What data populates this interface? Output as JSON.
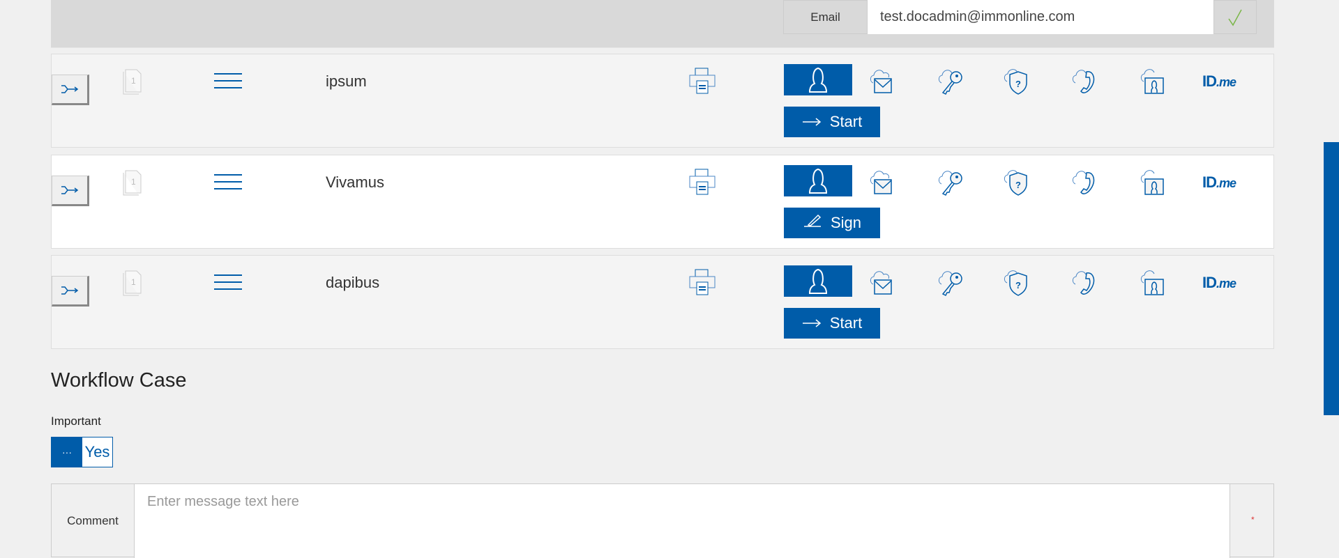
{
  "header": {
    "email_label": "Email",
    "email_value": "test.docadmin@immonline.com"
  },
  "rows": [
    {
      "name": "ipsum",
      "action_label": "Start",
      "action_icon": "arrow-right-icon",
      "background": "#f4f4f4"
    },
    {
      "name": "Vivamus",
      "action_label": "Sign",
      "action_icon": "pen-icon",
      "background": "#ffffff"
    },
    {
      "name": "dapibus",
      "action_label": "Start",
      "action_icon": "arrow-right-icon",
      "background": "#f4f4f4"
    }
  ],
  "idme": {
    "id": "ID",
    "me": ".me"
  },
  "doc_page": "1",
  "workflow": {
    "title": "Workflow Case",
    "important_label": "Important",
    "toggle_off": "···",
    "toggle_on": "Yes",
    "comment_label": "Comment",
    "comment_placeholder": "Enter message text here",
    "required_mark": "*"
  },
  "colors": {
    "accent": "#005ca9",
    "check": "#7ab648"
  }
}
